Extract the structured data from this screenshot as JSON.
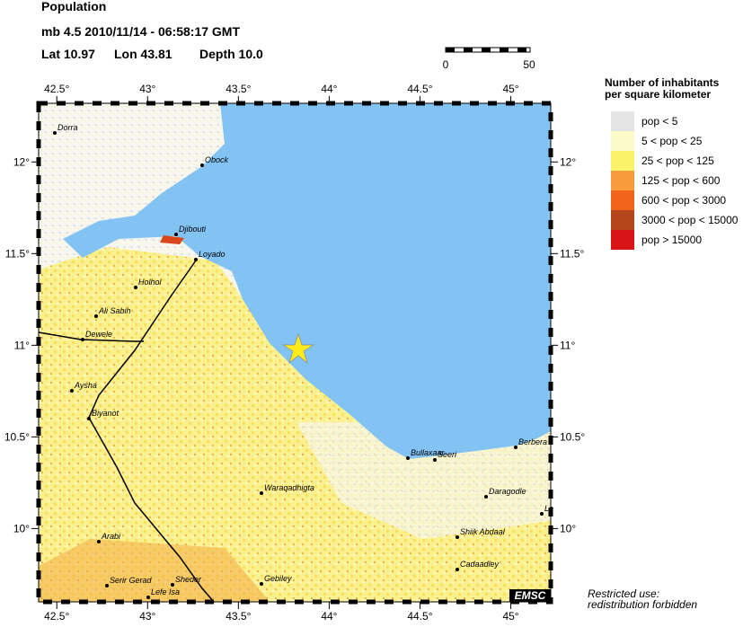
{
  "header": {
    "title": "Population",
    "event": "mb 4.5  2010/11/14 - 06:58:17 GMT",
    "lat": "Lat 10.97",
    "lon": "Lon  43.81",
    "depth": "Depth  10.0"
  },
  "scale": {
    "start": "0",
    "end": "50"
  },
  "map": {
    "lonlim": [
      42.4,
      45.22
    ],
    "latlim": [
      9.6,
      12.32
    ],
    "lonticks": [
      {
        "value": 42.5,
        "label": "42.5°"
      },
      {
        "value": 43,
        "label": "43°"
      },
      {
        "value": 43.5,
        "label": "43.5°"
      },
      {
        "value": 44,
        "label": "44°"
      },
      {
        "value": 44.5,
        "label": "44.5°"
      },
      {
        "value": 45,
        "label": "45°"
      }
    ],
    "latticks": [
      {
        "value": 10,
        "label": "10°"
      },
      {
        "value": 10.5,
        "label": "10.5°"
      },
      {
        "value": 11,
        "label": "11°"
      },
      {
        "value": 11.5,
        "label": "11.5°"
      },
      {
        "value": 12,
        "label": "12°"
      }
    ],
    "places": [
      "Dorra",
      "Obock",
      "Djibouti",
      "Loyado",
      "Holhol",
      "Ali Sabih",
      "Dewele",
      "Aysha",
      "Biyanot",
      "Bullaxaar",
      "Seeri",
      "Berbera",
      "Daragodle",
      "Waraqadhigta",
      "Arabi",
      "Shiik Abdaal",
      "Cadaadley",
      "Serir Gerad",
      "Sheder",
      "Gebiley",
      "Lefe Isa",
      "Lo"
    ],
    "badge": "EMSC"
  },
  "legend": {
    "title": [
      "Number of inhabitants",
      "per square kilometer"
    ],
    "items": [
      {
        "label": "pop < 5",
        "color": "#e4e4e4"
      },
      {
        "label": "5 < pop < 25",
        "color": "#fcfac8"
      },
      {
        "label": "25 < pop < 125",
        "color": "#faf36a"
      },
      {
        "label": "125 < pop < 600",
        "color": "#f79c3c"
      },
      {
        "label": "600 < pop < 3000",
        "color": "#f0641c"
      },
      {
        "label": "3000 < pop < 15000",
        "color": "#b5461c"
      },
      {
        "label": "pop > 15000",
        "color": "#d81414"
      }
    ]
  },
  "footer": [
    "Restricted use:",
    "redistribution forbidden"
  ]
}
